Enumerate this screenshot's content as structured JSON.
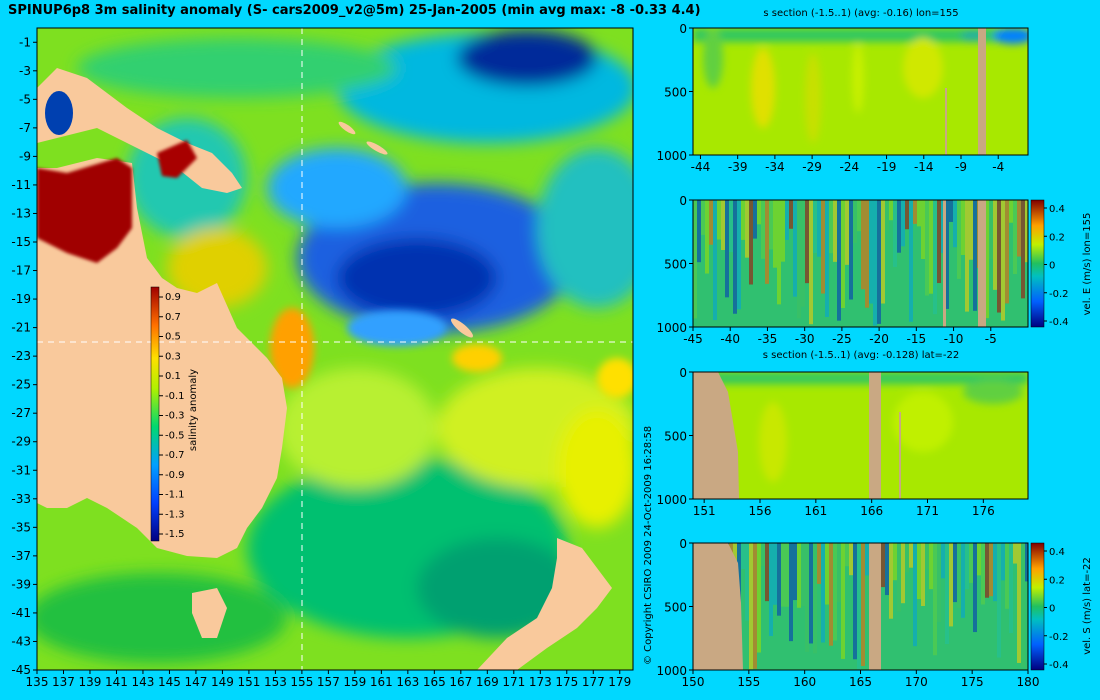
{
  "header": {
    "title": "SPINUP6p8 3m salinity anomaly (S- cars2009_v2@5m) 25-Jan-2005 (min avg max: -8 -0.33 4.4)"
  },
  "copyright": "© Copyright CSIRO 2009   24-Oct-2009 16:28:58",
  "colors": {
    "background": "#00d8ff",
    "land": "#f9c99c",
    "section_land": "#c9a883",
    "crosshair": "#ffffff"
  },
  "chart_data": [
    {
      "type": "heatmap",
      "name": "salinity map",
      "x_ticks": [
        "135",
        "137",
        "139",
        "141",
        "143",
        "145",
        "147",
        "149",
        "151",
        "153",
        "155",
        "157",
        "159",
        "161",
        "163",
        "165",
        "167",
        "169",
        "171",
        "173",
        "175",
        "177",
        "179"
      ],
      "y_ticks": [
        "-1",
        "-3",
        "-5",
        "-7",
        "-9",
        "-11",
        "-13",
        "-15",
        "-17",
        "-19",
        "-21",
        "-23",
        "-25",
        "-27",
        "-29",
        "-31",
        "-33",
        "-35",
        "-37",
        "-39",
        "-41",
        "-43",
        "-45"
      ],
      "xlim": [
        135,
        180
      ],
      "ylim": [
        -45,
        0
      ],
      "crosshair": {
        "lon": 155,
        "lat": -22
      },
      "colorbar": {
        "label": "salinity anomaly",
        "ticks": [
          "0.9",
          "0.7",
          "0.5",
          "0.3",
          "0.1",
          "-0.1",
          "-0.3",
          "-0.5",
          "-0.7",
          "-0.9",
          "-1.1",
          "-1.3",
          "-1.5"
        ]
      }
    },
    {
      "type": "heatmap",
      "name": "s section lon",
      "title": "s section (-1.5..1) (avg: -0.16) lon=155",
      "x_ticks": [
        "-44",
        "-39",
        "-34",
        "-29",
        "-24",
        "-19",
        "-14",
        "-9",
        "-4"
      ],
      "y_ticks": [
        "0",
        "500",
        "1000"
      ],
      "xlim": [
        -45,
        0
      ],
      "ylim": [
        1000,
        0
      ]
    },
    {
      "type": "heatmap",
      "name": "velocity east section",
      "x_ticks": [
        "-45",
        "-40",
        "-35",
        "-30",
        "-25",
        "-20",
        "-15",
        "-10",
        "-5"
      ],
      "y_ticks": [
        "0",
        "500",
        "1000"
      ],
      "xlim": [
        -45,
        0
      ],
      "ylim": [
        1000,
        0
      ],
      "colorbar": {
        "label": "vel. E (m/s) lon=155",
        "ticks": [
          "0.4",
          "0.2",
          "0",
          "-0.2",
          "-0.4"
        ]
      }
    },
    {
      "type": "heatmap",
      "name": "s section lat",
      "title": "s section (-1.5..1) (avg: -0.128) lat=-22",
      "x_ticks": [
        "151",
        "156",
        "161",
        "166",
        "171",
        "176"
      ],
      "y_ticks": [
        "0",
        "500",
        "1000"
      ],
      "xlim": [
        150,
        180
      ],
      "ylim": [
        1000,
        0
      ]
    },
    {
      "type": "heatmap",
      "name": "velocity south section",
      "x_ticks": [
        "150",
        "155",
        "160",
        "165",
        "170",
        "175",
        "180"
      ],
      "y_ticks": [
        "0",
        "500",
        "1000"
      ],
      "xlim": [
        150,
        180
      ],
      "ylim": [
        1000,
        0
      ],
      "colorbar": {
        "label": "vel. S (m/s) lat=-22",
        "ticks": [
          "0.4",
          "0.2",
          "0",
          "-0.2",
          "-0.4"
        ]
      }
    }
  ]
}
